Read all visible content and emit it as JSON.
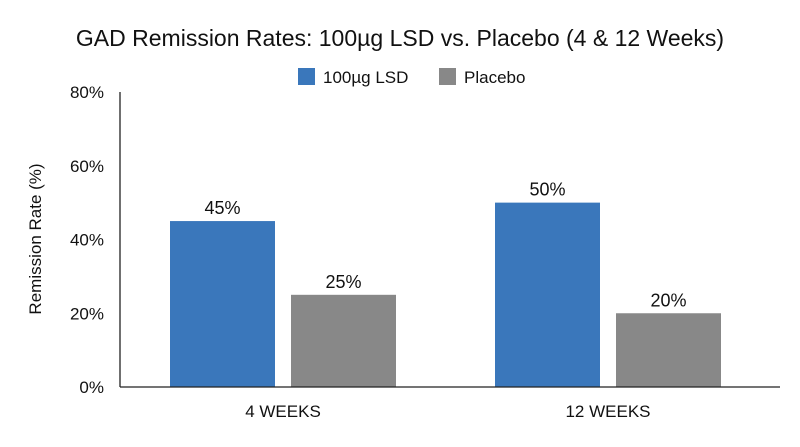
{
  "chart_data": {
    "type": "bar",
    "title": "GAD Remission Rates: 100µg LSD vs. Placebo (4 & 12 Weeks)",
    "xlabel": "",
    "ylabel": "Remission Rate (%)",
    "categories": [
      "4 WEEKS",
      "12 WEEKS"
    ],
    "series": [
      {
        "name": "100µg LSD",
        "values": [
          45,
          50
        ],
        "color": "#3a77bb"
      },
      {
        "name": "Placebo",
        "values": [
          25,
          20
        ],
        "color": "#888888"
      }
    ],
    "value_suffix": "%",
    "ylim": [
      0,
      80
    ],
    "yticks": [
      0,
      20,
      40,
      60,
      80
    ],
    "ytick_labels": [
      "0%",
      "20%",
      "40%",
      "60%",
      "80%"
    ],
    "grid": false,
    "legend": "top-center"
  }
}
